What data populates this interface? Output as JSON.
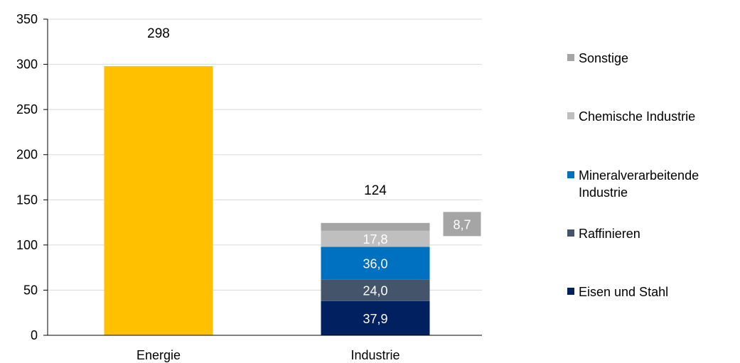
{
  "chart_data": {
    "type": "bar",
    "stacked": true,
    "categories": [
      "Energie",
      "Industrie"
    ],
    "ylim": [
      0,
      350
    ],
    "yticks": [
      0,
      50,
      100,
      150,
      200,
      250,
      300,
      350
    ],
    "grid": true,
    "legend_position": "right",
    "totals": [
      "298",
      "124"
    ],
    "series": [
      {
        "name": "",
        "color": "#FFC000",
        "values": [
          298,
          0
        ],
        "labels": [
          "",
          ""
        ],
        "label_color": "#000000"
      },
      {
        "name": "Eisen und Stahl",
        "color": "#002060",
        "values": [
          0,
          37.9
        ],
        "labels": [
          "",
          "37,9"
        ],
        "label_color": "#ffffff"
      },
      {
        "name": "Raffinieren",
        "color": "#44546A",
        "values": [
          0,
          24.0
        ],
        "labels": [
          "",
          "24,0"
        ],
        "label_color": "#ffffff"
      },
      {
        "name": "Mineralverarbeitende Industrie",
        "color": "#0070C0",
        "values": [
          0,
          36.0
        ],
        "labels": [
          "",
          "36,0"
        ],
        "label_color": "#ffffff"
      },
      {
        "name": "Chemische Industrie",
        "color": "#BFBFBF",
        "values": [
          0,
          17.8
        ],
        "labels": [
          "",
          "17,8"
        ],
        "label_color": "#ffffff"
      },
      {
        "name": "Sonstige",
        "color": "#A5A5A5",
        "values": [
          0,
          8.7
        ],
        "labels": [
          "",
          "8,7"
        ],
        "label_color": "#ffffff",
        "label_boxed": true
      }
    ],
    "legend": [
      {
        "lines": [
          "Sonstige"
        ],
        "color": "#A5A5A5"
      },
      {
        "lines": [
          "Chemische Industrie"
        ],
        "color": "#BFBFBF"
      },
      {
        "lines": [
          "Mineralverarbeitende",
          "Industrie"
        ],
        "color": "#0070C0"
      },
      {
        "lines": [
          "Raffinieren"
        ],
        "color": "#44546A"
      },
      {
        "lines": [
          "Eisen und Stahl"
        ],
        "color": "#002060"
      }
    ]
  }
}
